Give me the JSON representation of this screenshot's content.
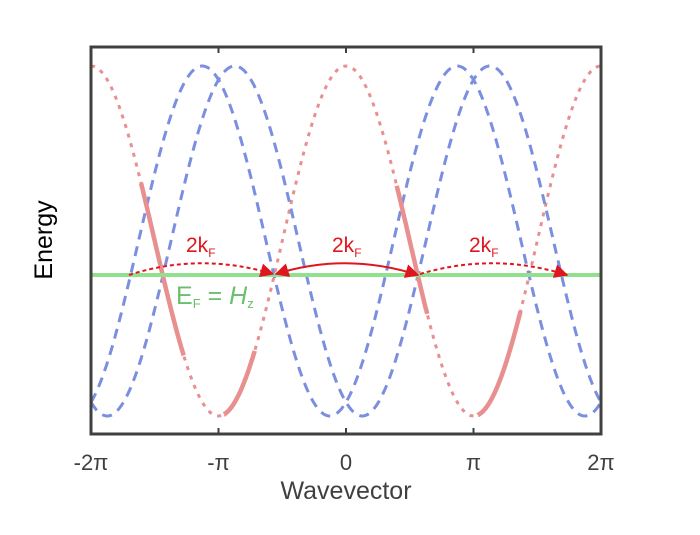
{
  "chart_data": {
    "type": "line",
    "title": "",
    "xlabel": "Wavevector",
    "ylabel": "Energy",
    "xlim": [
      -6.2832,
      6.2832
    ],
    "ylim": [
      -1.18,
      1.05
    ],
    "grid": false,
    "xticks": [
      -6.2832,
      -3.1416,
      0,
      3.1416,
      6.2832
    ],
    "xtick_labels": [
      "-2π",
      "-π",
      "0",
      "π",
      "2π"
    ],
    "yticks": [],
    "series": [
      {
        "name": "band-red",
        "style": "dotted",
        "color": "#e8908f",
        "formula": "cos(k)",
        "x_samples": [
          -6.2832,
          -4.7124,
          -3.1416,
          -1.5708,
          0,
          1.5708,
          3.1416,
          4.7124,
          6.2832
        ],
        "y_samples": [
          1,
          0,
          -1,
          0,
          1,
          0,
          -1,
          0,
          1
        ]
      },
      {
        "name": "band-blue-1",
        "style": "dashed",
        "color": "#7b8fe0",
        "formula": "-cos(k+0.4)"
      },
      {
        "name": "band-blue-2",
        "style": "dashed",
        "color": "#7b8fe0",
        "formula": "-cos(k-0.4)"
      },
      {
        "name": "fermi-crossing-segments",
        "style": "solid",
        "color": "#e8908f",
        "x_ranges": [
          [
            -5.05,
            -4.0
          ],
          [
            -3.0,
            -2.25
          ],
          [
            1.25,
            2.0
          ],
          [
            3.25,
            4.3
          ]
        ]
      },
      {
        "name": "fermi-level",
        "style": "solid",
        "color": "#90e090",
        "y": 0
      }
    ],
    "annotations": [
      {
        "text": "2k_F",
        "x": -3.8,
        "y": 0.18,
        "arrow": {
          "from": -5.4,
          "to": -1.75,
          "style": "dotted"
        }
      },
      {
        "text": "2k_F",
        "x": 0.2,
        "y": 0.18,
        "arrow": {
          "from": -1.75,
          "to": 1.75,
          "style": "solid"
        }
      },
      {
        "text": "2k_F",
        "x": 4.0,
        "y": 0.18,
        "arrow": {
          "from": 1.75,
          "to": 5.4,
          "style": "dotted"
        }
      },
      {
        "text": "E_F = H_z",
        "x": -4.0,
        "y": -0.12,
        "color": "#6cbf6c"
      }
    ]
  },
  "labels": {
    "xlabel": "Wavevector",
    "ylabel": "Energy",
    "xticks": [
      "-2π",
      "-π",
      "0",
      "π",
      "2π"
    ],
    "annot_main": "2k",
    "annot_sub": "F",
    "ef_e": "E",
    "ef_sub": "F",
    "ef_eq": " = ",
    "ef_h": "H",
    "ef_hsub": "z"
  },
  "colors": {
    "red_band": "#e8908f",
    "blue_band": "#7b8fe0",
    "fermi": "#90e090",
    "arrow": "#e0161e",
    "frame": "#404040"
  }
}
